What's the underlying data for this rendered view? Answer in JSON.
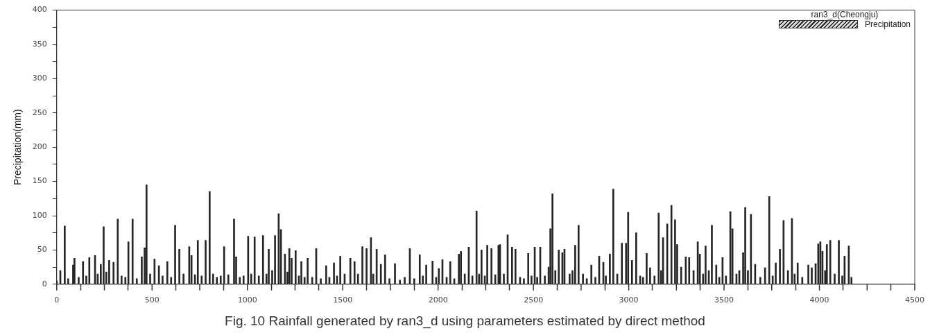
{
  "chart_data": {
    "type": "bar",
    "ylabel": "Precipitation(mm)",
    "legend_title": "ran3_d(Cheongju)",
    "legend": "top right",
    "grid": false,
    "annotations": [
      "Fig. 10 Rainfall generated by ran3_d using parameters estimated by direct method"
    ],
    "xlim": [
      0,
      4500
    ],
    "xticks": [
      0,
      {
        "value": 250,
        "label": null
      },
      500,
      {
        "value": 750,
        "label": null
      },
      1000,
      {
        "value": 1250,
        "label": null
      },
      1500,
      {
        "value": 1750,
        "label": null
      },
      2000,
      {
        "value": 2250,
        "label": null
      },
      2500,
      {
        "value": 2750,
        "label": null
      },
      3000,
      {
        "value": 3250,
        "label": null
      },
      3500,
      {
        "value": 3750,
        "label": null
      },
      4000,
      {
        "value": 4250,
        "label": null
      },
      4500
    ],
    "ylim": [
      0,
      400
    ],
    "yticks": [
      0,
      {
        "value": 25,
        "label": null
      },
      50,
      {
        "value": 75,
        "label": null
      },
      100,
      {
        "value": 125,
        "label": null
      },
      150,
      {
        "value": 175,
        "label": null
      },
      200,
      {
        "value": 225,
        "label": null
      },
      250,
      {
        "value": 275,
        "label": null
      },
      300,
      {
        "value": 325,
        "label": null
      },
      350,
      {
        "value": 375,
        "label": null
      },
      400
    ],
    "series": [
      {
        "name": "Precipitation",
        "color": "#262626",
        "x": [
          0,
          19,
          42,
          60,
          86,
          93,
          115,
          138,
          155,
          171,
          201,
          215,
          231,
          246,
          260,
          275,
          298,
          320,
          340,
          360,
          376,
          398,
          420,
          446,
          461,
          471,
          490,
          513,
          536,
          555,
          580,
          600,
          621,
          643,
          665,
          695,
          707,
          725,
          740,
          760,
          781,
          802,
          820,
          840,
          860,
          878,
          900,
          930,
          941,
          960,
          980,
          1004,
          1020,
          1038,
          1060,
          1082,
          1100,
          1112,
          1130,
          1145,
          1164,
          1176,
          1197,
          1210,
          1220,
          1232,
          1253,
          1270,
          1283,
          1300,
          1316,
          1340,
          1361,
          1385,
          1413,
          1430,
          1454,
          1470,
          1487,
          1510,
          1540,
          1562,
          1580,
          1603,
          1625,
          1648,
          1660,
          1678,
          1700,
          1722,
          1745,
          1774,
          1800,
          1825,
          1852,
          1875,
          1904,
          1920,
          1938,
          1971,
          1990,
          2004,
          2023,
          2045,
          2064,
          2085,
          2109,
          2120,
          2140,
          2161,
          2180,
          2202,
          2215,
          2228,
          2245,
          2258,
          2280,
          2300,
          2317,
          2325,
          2345,
          2365,
          2388,
          2406,
          2430,
          2450,
          2473,
          2490,
          2507,
          2520,
          2536,
          2560,
          2580,
          2589,
          2600,
          2615,
          2633,
          2652,
          2663,
          2690,
          2705,
          2719,
          2737,
          2760,
          2780,
          2804,
          2825,
          2845,
          2867,
          2880,
          2901,
          2919,
          2940,
          2964,
          2986,
          2997,
          3017,
          3039,
          3060,
          3075,
          3094,
          3112,
          3135,
          3157,
          3170,
          3180,
          3202,
          3224,
          3243,
          3254,
          3275,
          3299,
          3317,
          3340,
          3362,
          3373,
          3390,
          3403,
          3420,
          3436,
          3459,
          3475,
          3492,
          3510,
          3533,
          3544,
          3565,
          3580,
          3600,
          3611,
          3625,
          3641,
          3663,
          3690,
          3715,
          3737,
          3755,
          3771,
          3793,
          3812,
          3835,
          3856,
          3870,
          3886,
          3910,
          3942,
          3960,
          3980,
          3994,
          4005,
          4016,
          4030,
          4039,
          4057,
          4080,
          4102,
          4120,
          4132,
          4154,
          4168
        ],
        "values": [
          5,
          20,
          85,
          8,
          28,
          38,
          10,
          33,
          12,
          39,
          42,
          15,
          29,
          84,
          18,
          35,
          32,
          95,
          12,
          10,
          62,
          95,
          8,
          40,
          53,
          145,
          15,
          37,
          27,
          12,
          33,
          10,
          86,
          51,
          15,
          55,
          42,
          14,
          64,
          12,
          64,
          135,
          15,
          10,
          12,
          55,
          14,
          95,
          40,
          10,
          12,
          70,
          15,
          69,
          12,
          71,
          15,
          51,
          20,
          71,
          103,
          80,
          44,
          18,
          52,
          38,
          49,
          12,
          33,
          10,
          38,
          10,
          52,
          8,
          27,
          10,
          31,
          12,
          41,
          15,
          38,
          33,
          15,
          55,
          52,
          68,
          15,
          51,
          29,
          43,
          8,
          30,
          6,
          10,
          52,
          8,
          43,
          12,
          28,
          34,
          10,
          23,
          36,
          10,
          33,
          8,
          44,
          48,
          15,
          54,
          12,
          107,
          15,
          50,
          12,
          57,
          52,
          14,
          57,
          58,
          15,
          72,
          54,
          51,
          10,
          8,
          45,
          12,
          54,
          10,
          54,
          12,
          25,
          81,
          132,
          20,
          50,
          46,
          51,
          15,
          20,
          57,
          86,
          15,
          8,
          28,
          10,
          41,
          32,
          12,
          44,
          139,
          15,
          60,
          60,
          105,
          35,
          75,
          12,
          10,
          45,
          24,
          12,
          104,
          20,
          68,
          88,
          115,
          94,
          58,
          25,
          40,
          39,
          20,
          62,
          44,
          15,
          56,
          20,
          86,
          28,
          10,
          39,
          12,
          106,
          81,
          15,
          20,
          46,
          112,
          20,
          102,
          29,
          10,
          24,
          128,
          12,
          31,
          51,
          93,
          20,
          96,
          15,
          31,
          10,
          28,
          24,
          30,
          59,
          62,
          48,
          20,
          58,
          64,
          15,
          64,
          12,
          41,
          56,
          10
        ]
      }
    ]
  }
}
